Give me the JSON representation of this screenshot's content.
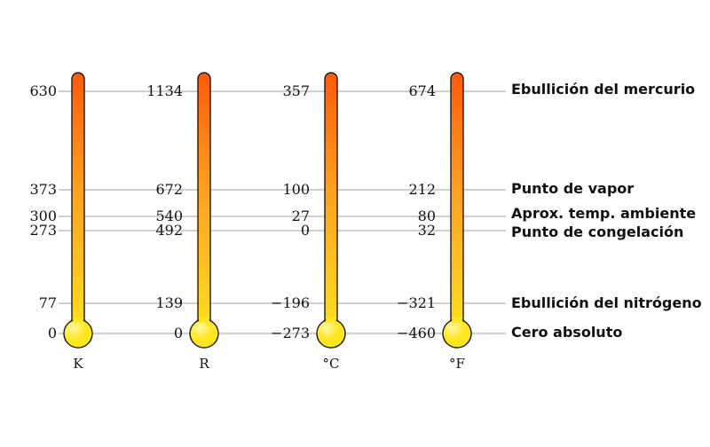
{
  "scales": [
    {
      "unit": "K",
      "ticks": [
        "630",
        "373",
        "300",
        "273",
        "77",
        "0"
      ]
    },
    {
      "unit": "R",
      "ticks": [
        "1134",
        "672",
        "540",
        "492",
        "139",
        "0"
      ]
    },
    {
      "unit": "°C",
      "ticks": [
        "357",
        "100",
        "27",
        "0",
        "−196",
        "−273"
      ]
    },
    {
      "unit": "°F",
      "ticks": [
        "674",
        "212",
        "80",
        "32",
        "−321",
        "−460"
      ]
    }
  ],
  "reference_labels": [
    "Ebullición del mercurio",
    "Punto de vapor",
    "Aprox. temp. ambiente",
    "Punto de congelación",
    "Ebullición del nitrógeno",
    "Cero absoluto"
  ],
  "colors": {
    "tube_top": "#ff5a0a",
    "tube_mid": "#ffa020",
    "tube_bottom": "#ffe11e",
    "bulb": "#ffe61e",
    "outline": "#1a1a1a",
    "guide_line": "#b5b5b5"
  }
}
